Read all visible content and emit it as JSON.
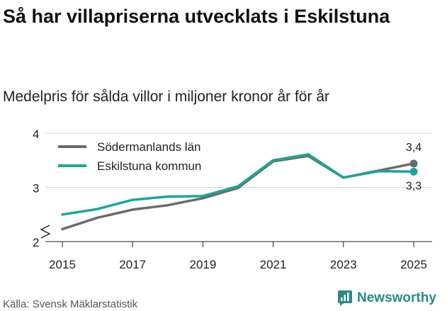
{
  "title": "Så har villapriserna utvecklats i Eskilstuna",
  "subtitle": "Medelpris för sålda villor i miljoner kronor år för år",
  "source": "Källa: Svensk Mäklarstatistik",
  "brand": {
    "name": "Newsworthy",
    "icon": "newsworthy-logo-icon",
    "color": "#2a8a82"
  },
  "chart_data": {
    "type": "line",
    "x": [
      2015,
      2016,
      2017,
      2018,
      2019,
      2020,
      2021,
      2022,
      2023,
      2024,
      2025
    ],
    "series": [
      {
        "name": "Södermanlands län",
        "color": "#6b6b6b",
        "values": [
          2.23,
          2.44,
          2.59,
          2.67,
          2.8,
          2.99,
          3.48,
          3.58,
          3.18,
          3.31,
          3.44
        ],
        "end_label": "3,4"
      },
      {
        "name": "Eskilstuna kommun",
        "color": "#1aa69a",
        "values": [
          2.5,
          2.6,
          2.77,
          2.83,
          2.84,
          3.02,
          3.5,
          3.61,
          3.18,
          3.3,
          3.29
        ],
        "end_label": "3,3"
      }
    ],
    "ylim": [
      2,
      4
    ],
    "yticks": [
      2,
      3,
      4
    ],
    "xticks": [
      2015,
      2017,
      2019,
      2021,
      2023,
      2025
    ],
    "xlabel": "",
    "ylabel": "",
    "grid": true,
    "legend_position": "top-left",
    "axis_break": true
  }
}
